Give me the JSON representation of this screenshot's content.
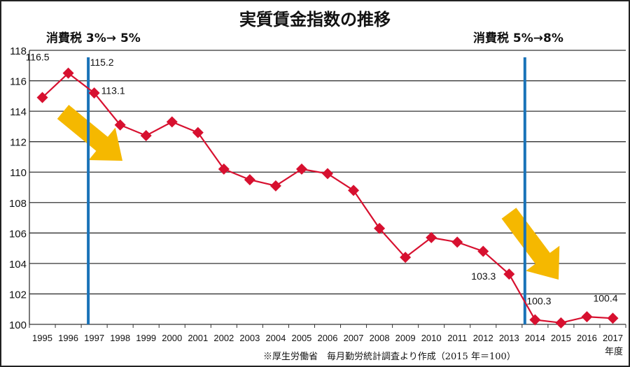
{
  "chart_data": {
    "type": "line",
    "title": "実質賃金指数の推移",
    "xlabel": "年度",
    "ylabel": "",
    "ylim": [
      100,
      118
    ],
    "yticks": [
      100,
      102,
      104,
      106,
      108,
      110,
      112,
      114,
      116,
      118
    ],
    "grid": true,
    "categories": [
      "1995",
      "1996",
      "1997",
      "1998",
      "1999",
      "2000",
      "2001",
      "2002",
      "2003",
      "2004",
      "2005",
      "2006",
      "2007",
      "2008",
      "2009",
      "2010",
      "2011",
      "2012",
      "2013",
      "2014",
      "2015",
      "2016",
      "2017"
    ],
    "series": [
      {
        "name": "実質賃金指数",
        "color": "#d7102f",
        "values": [
          114.9,
          116.5,
          115.2,
          113.1,
          112.4,
          113.3,
          112.6,
          110.2,
          109.5,
          109.1,
          110.2,
          109.9,
          108.8,
          106.3,
          104.4,
          105.7,
          105.4,
          104.8,
          103.3,
          100.3,
          100.1,
          100.5,
          100.4
        ]
      }
    ],
    "data_labels": [
      {
        "category": "1996",
        "text": "116.5"
      },
      {
        "category": "1997",
        "text": "115.2"
      },
      {
        "category": "1998",
        "text": "113.1"
      },
      {
        "category": "2013",
        "text": "103.3"
      },
      {
        "category": "2014",
        "text": "100.3"
      },
      {
        "category": "2017",
        "text": "100.4"
      }
    ],
    "annotations": [
      {
        "text": "消費税 3%→ 5%",
        "after_category": "1996",
        "line_color": "#1a73b8"
      },
      {
        "text": "消費税 5%→8%",
        "after_category": "2013",
        "line_color": "#1a73b8"
      }
    ],
    "arrow_color": "#f5b800",
    "note": "※厚生労働省　毎月勤労統計調査より作成（2015 年＝100）"
  }
}
